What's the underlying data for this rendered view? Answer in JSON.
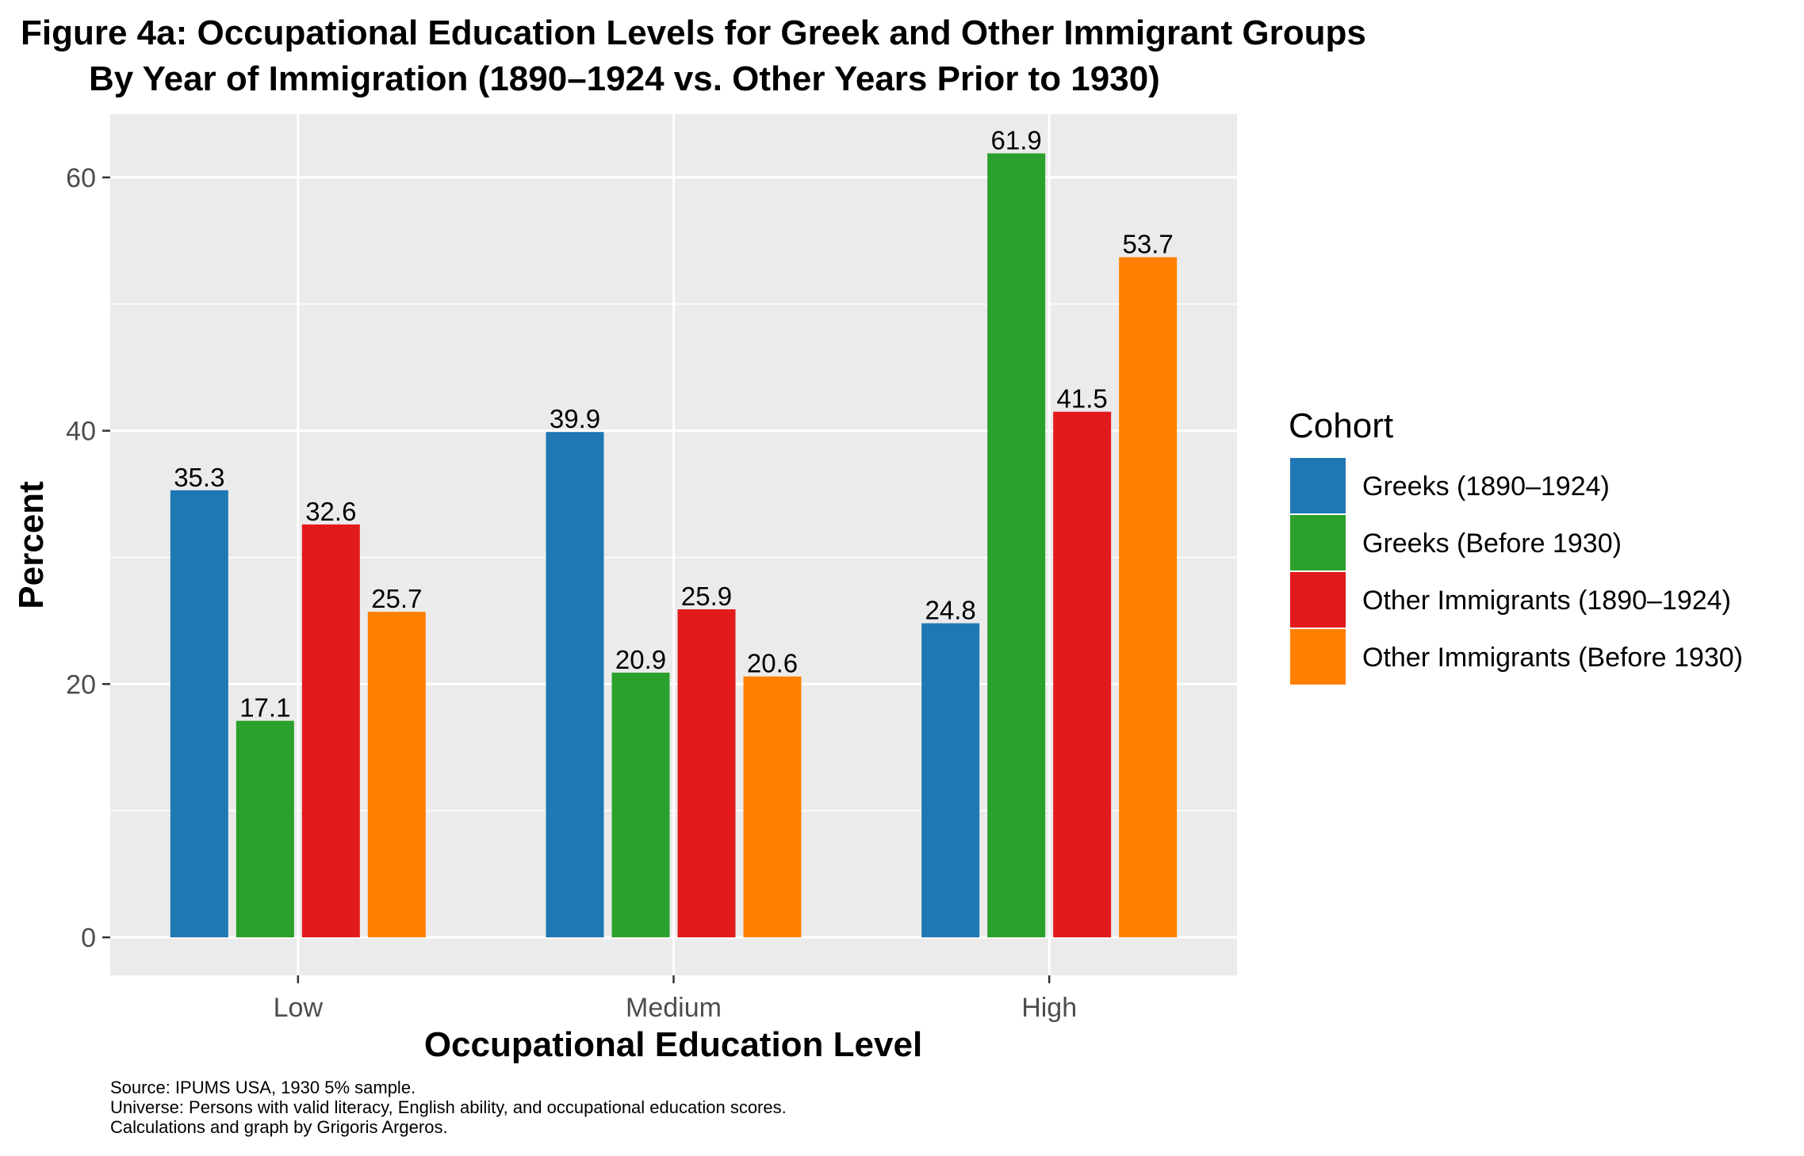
{
  "chart_data": {
    "type": "bar",
    "title": "Figure 4a: Occupational Education Levels for Greek and Other Immigrant Groups",
    "subtitle": "By Year of Immigration (1890–1924 vs. Other Years Prior to 1930)",
    "xlabel": "Occupational Education Level",
    "ylabel": "Percent",
    "categories": [
      "Low",
      "Medium",
      "High"
    ],
    "yticks": [
      0,
      20,
      40,
      60
    ],
    "ylim": [
      -3,
      65
    ],
    "grid": true,
    "legend": {
      "title": "Cohort",
      "position": "right"
    },
    "series": [
      {
        "name": "Greeks (1890–1924)",
        "color": "#1f77b4",
        "values": [
          35.3,
          39.9,
          24.8
        ],
        "labels": [
          "35.3",
          "39.9",
          "24.8"
        ]
      },
      {
        "name": "Greeks (Before 1930)",
        "color": "#2ca02c",
        "values": [
          17.1,
          20.9,
          61.9
        ],
        "labels": [
          "17.1",
          "20.9",
          "61.9"
        ]
      },
      {
        "name": "Other Immigrants (1890–1924)",
        "color": "#e31a1c",
        "values": [
          32.6,
          25.9,
          41.5
        ],
        "labels": [
          "32.6",
          "25.9",
          "41.5"
        ]
      },
      {
        "name": "Other Immigrants (Before 1930)",
        "color": "#ff7f00",
        "values": [
          25.7,
          20.6,
          53.7
        ],
        "labels": [
          "25.7",
          "20.6",
          "53.7"
        ]
      }
    ],
    "caption": [
      "Source: IPUMS USA, 1930 5% sample.",
      "Universe: Persons with valid literacy, English ability, and occupational education scores.",
      "Calculations and graph by Grigoris Argeros."
    ]
  }
}
